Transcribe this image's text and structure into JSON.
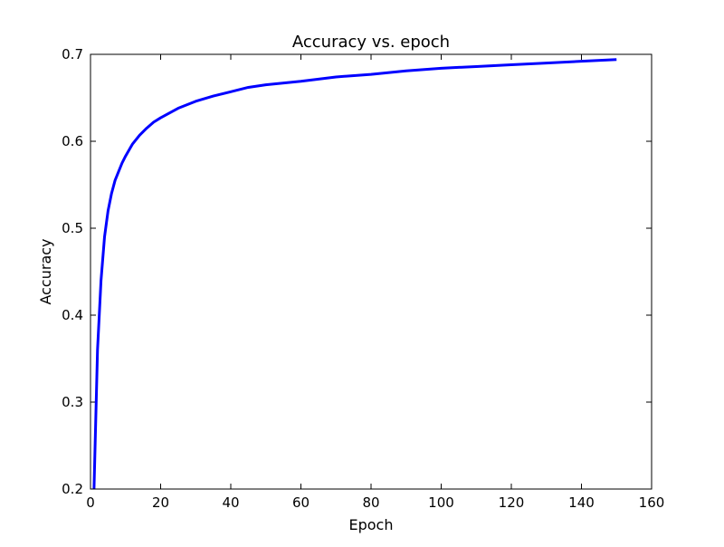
{
  "chart_data": {
    "type": "line",
    "title": "Accuracy vs. epoch",
    "xlabel": "Epoch",
    "ylabel": "Accuracy",
    "xlim": [
      0,
      160
    ],
    "ylim": [
      0.2,
      0.7
    ],
    "xticks": [
      0,
      20,
      40,
      60,
      80,
      100,
      120,
      140,
      160
    ],
    "yticks": [
      0.2,
      0.3,
      0.4,
      0.5,
      0.6,
      0.7
    ],
    "xtick_labels": [
      "0",
      "20",
      "40",
      "60",
      "80",
      "100",
      "120",
      "140",
      "160"
    ],
    "ytick_labels": [
      "0.2",
      "0.3",
      "0.4",
      "0.5",
      "0.6",
      "0.7"
    ],
    "grid": false,
    "legend": null,
    "series": [
      {
        "color": "#0000ff",
        "x": [
          1,
          2,
          3,
          4,
          5,
          6,
          7,
          8,
          9,
          10,
          12,
          14,
          16,
          18,
          20,
          25,
          30,
          35,
          40,
          45,
          50,
          60,
          70,
          80,
          90,
          100,
          110,
          120,
          130,
          140,
          150
        ],
        "y": [
          0.2,
          0.36,
          0.44,
          0.49,
          0.52,
          0.54,
          0.555,
          0.565,
          0.575,
          0.583,
          0.597,
          0.607,
          0.615,
          0.622,
          0.627,
          0.638,
          0.646,
          0.652,
          0.657,
          0.662,
          0.665,
          0.669,
          0.674,
          0.677,
          0.681,
          0.684,
          0.686,
          0.688,
          0.69,
          0.692,
          0.694
        ]
      }
    ]
  }
}
